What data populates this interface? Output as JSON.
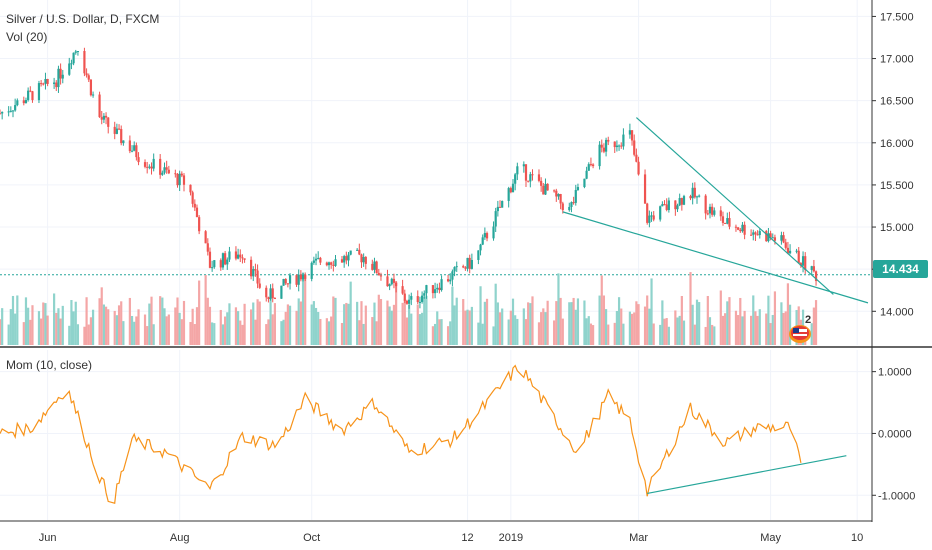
{
  "header": {
    "title": "Silver / U.S. Dollar, D, FXCM",
    "volume_label": "Vol (20)",
    "momentum_label": "Mom (10, close)"
  },
  "colors": {
    "up": "#26a69a",
    "down": "#ef5350",
    "vol_up": "#8fd3cc",
    "vol_down": "#f4a6a6",
    "momentum": "#f7931a",
    "trendline": "#26a69a",
    "grid": "#f0f3fa",
    "axis": "#333333"
  },
  "badge": {
    "last_price": "14.434",
    "indicator_text": "2"
  },
  "chart_data": [
    {
      "type": "candlestick",
      "title": "Silver / U.S. Dollar, D, FXCM",
      "x_tick_labels": [
        "Jun",
        "Aug",
        "Oct",
        "12",
        "2019",
        "Mar",
        "May",
        "10"
      ],
      "y_tick_labels": [
        "14.000",
        "14.500",
        "15.000",
        "15.500",
        "16.000",
        "16.500",
        "17.000",
        "17.500"
      ],
      "ylim": [
        13.6,
        17.6
      ],
      "last_price": 14.434,
      "date_range": [
        "2018-05-10",
        "2019-05-22"
      ],
      "key_closes": [
        {
          "date": "2018-05-10",
          "close": 16.35
        },
        {
          "date": "2018-06-05",
          "close": 16.75
        },
        {
          "date": "2018-06-15",
          "close": 17.15
        },
        {
          "date": "2018-06-25",
          "close": 16.3
        },
        {
          "date": "2018-07-15",
          "close": 15.8
        },
        {
          "date": "2018-08-05",
          "close": 15.5
        },
        {
          "date": "2018-08-15",
          "close": 14.55
        },
        {
          "date": "2018-08-30",
          "close": 14.7
        },
        {
          "date": "2018-09-10",
          "close": 14.15
        },
        {
          "date": "2018-10-05",
          "close": 14.6
        },
        {
          "date": "2018-10-25",
          "close": 14.65
        },
        {
          "date": "2018-11-15",
          "close": 14.1
        },
        {
          "date": "2018-12-15",
          "close": 14.6
        },
        {
          "date": "2019-01-05",
          "close": 15.7
        },
        {
          "date": "2019-01-28",
          "close": 15.2
        },
        {
          "date": "2019-02-10",
          "close": 15.9
        },
        {
          "date": "2019-02-25",
          "close": 16.1
        },
        {
          "date": "2019-03-05",
          "close": 15.1
        },
        {
          "date": "2019-03-25",
          "close": 15.4
        },
        {
          "date": "2019-04-10",
          "close": 15.05
        },
        {
          "date": "2019-05-05",
          "close": 14.85
        },
        {
          "date": "2019-05-22",
          "close": 14.43
        }
      ],
      "annotations": [
        {
          "type": "trendline",
          "from": {
            "date": "2019-02-28",
            "value": 16.3
          },
          "to": {
            "date": "2019-05-30",
            "value": 14.2
          }
        },
        {
          "type": "trendline",
          "from": {
            "date": "2019-01-25",
            "value": 15.18
          },
          "to": {
            "date": "2019-06-15",
            "value": 14.1
          }
        }
      ]
    },
    {
      "type": "line",
      "title": "Mom (10, close)",
      "y_tick_labels": [
        "-1.0000",
        "0.0000",
        "1.0000"
      ],
      "ylim": [
        -1.4,
        1.35
      ],
      "points": [
        {
          "date": "2018-05-10",
          "value": 0.0
        },
        {
          "date": "2018-05-25",
          "value": 0.1
        },
        {
          "date": "2018-06-10",
          "value": 0.75
        },
        {
          "date": "2018-06-25",
          "value": -0.7
        },
        {
          "date": "2018-07-01",
          "value": -1.15
        },
        {
          "date": "2018-07-10",
          "value": -0.1
        },
        {
          "date": "2018-07-25",
          "value": -0.3
        },
        {
          "date": "2018-08-15",
          "value": -0.9
        },
        {
          "date": "2018-08-30",
          "value": -0.05
        },
        {
          "date": "2018-09-15",
          "value": -0.2
        },
        {
          "date": "2018-09-28",
          "value": 0.55
        },
        {
          "date": "2018-10-15",
          "value": 0.05
        },
        {
          "date": "2018-10-30",
          "value": 0.5
        },
        {
          "date": "2018-11-15",
          "value": -0.3
        },
        {
          "date": "2018-12-05",
          "value": -0.1
        },
        {
          "date": "2018-12-20",
          "value": 0.45
        },
        {
          "date": "2019-01-05",
          "value": 1.1
        },
        {
          "date": "2019-01-20",
          "value": 0.3
        },
        {
          "date": "2019-02-01",
          "value": -0.3
        },
        {
          "date": "2019-02-15",
          "value": 0.6
        },
        {
          "date": "2019-02-25",
          "value": 0.2
        },
        {
          "date": "2019-03-05",
          "value": -0.95
        },
        {
          "date": "2019-03-25",
          "value": 0.4
        },
        {
          "date": "2019-04-10",
          "value": -0.15
        },
        {
          "date": "2019-04-25",
          "value": 0.1
        },
        {
          "date": "2019-05-10",
          "value": 0.1
        },
        {
          "date": "2019-05-15",
          "value": -0.5
        }
      ],
      "annotations": [
        {
          "type": "trendline",
          "from": {
            "date": "2019-03-05",
            "value": -0.97
          },
          "to": {
            "date": "2019-06-05",
            "value": -0.36
          }
        }
      ]
    }
  ]
}
